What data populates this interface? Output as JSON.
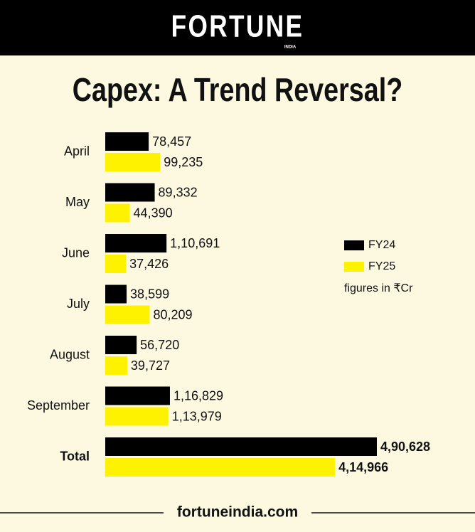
{
  "chart_data": {
    "type": "bar",
    "orientation": "horizontal",
    "brand": "FORTUNE",
    "brand_sub": "INDIA",
    "title": "Capex: A Trend Reversal?",
    "categories": [
      "April",
      "May",
      "June",
      "July",
      "August",
      "September",
      "Total"
    ],
    "series": [
      {
        "name": "FY24",
        "color": "#000000",
        "values": [
          78457,
          89332,
          110691,
          38599,
          56720,
          116829,
          490628
        ],
        "value_labels": [
          "78,457",
          "89,332",
          "1,10,691",
          "38,599",
          "56,720",
          "1,16,829",
          "4,90,628"
        ]
      },
      {
        "name": "FY25",
        "color": "#fff200",
        "values": [
          99235,
          44390,
          37426,
          80209,
          39727,
          113979,
          414966
        ],
        "value_labels": [
          "99,235",
          "44,390",
          "37,426",
          "80,209",
          "39,727",
          "1,13,979",
          "4,14,966"
        ]
      }
    ],
    "legend_position": "right",
    "note": "figures in ₹Cr",
    "source": "fortuneindia.com"
  }
}
